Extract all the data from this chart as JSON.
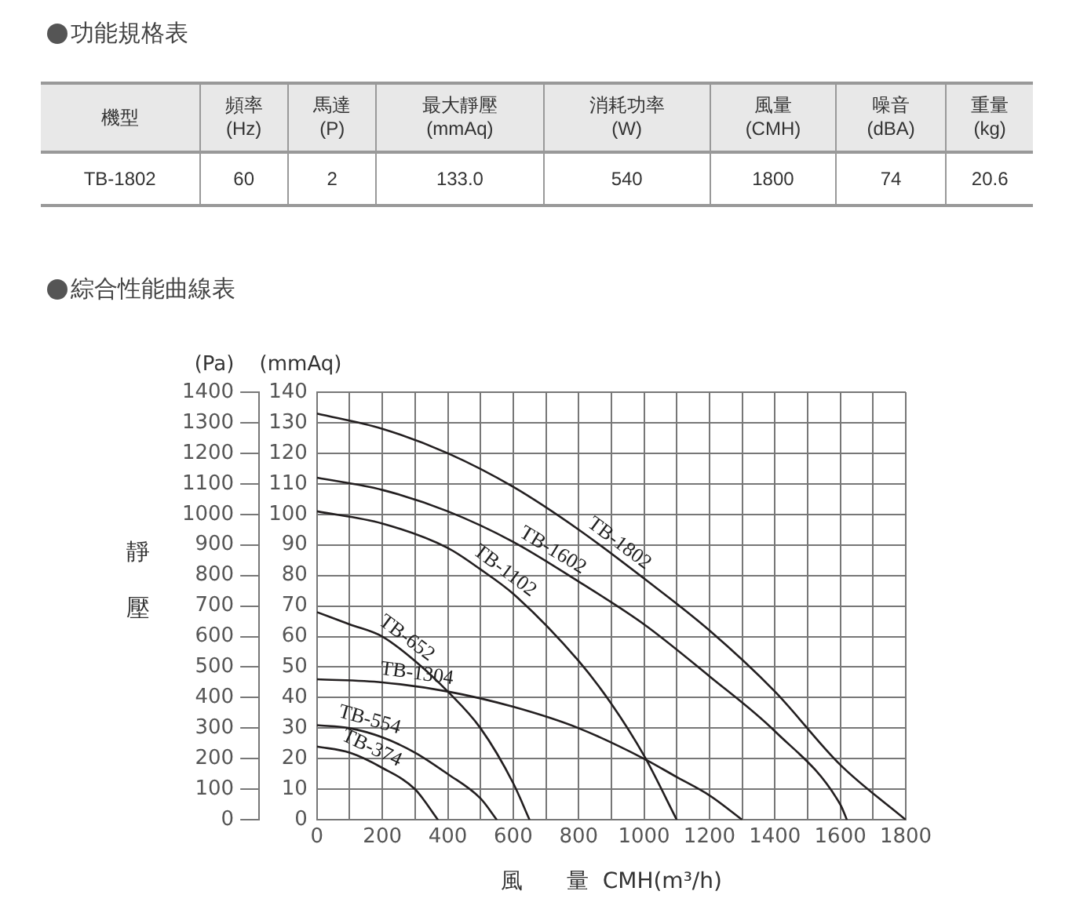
{
  "chart_data": [
    {
      "type": "other",
      "title": "功能規格表",
      "annotations": [
        "機型",
        "頻率\n(Hz)",
        "馬達\n(P)",
        "最大靜壓\n(mmAq)",
        "消耗功率\n(W)",
        "風量\n(CMH)",
        "噪音\n(dBA)",
        "重量\n(kg)",
        "TB-1802",
        "60",
        "2",
        "133.0",
        "540",
        "1800",
        "74",
        "20.6"
      ]
    },
    {
      "type": "line",
      "title": "綜合性能曲線表",
      "xlabel": "風　　量  CMH(m³/h)",
      "ylabel": "(mmAq)",
      "y2label": "(Pa)",
      "annotations": [
        "靜壓"
      ],
      "xlim": [
        0,
        1800
      ],
      "xticks": [
        0,
        {
          "value": 100,
          "label": null
        },
        200,
        {
          "value": 300,
          "label": null
        },
        400,
        {
          "value": 500,
          "label": null
        },
        600,
        {
          "value": 700,
          "label": null
        },
        800,
        {
          "value": 900,
          "label": null
        },
        1000,
        {
          "value": 1100,
          "label": null
        },
        1200,
        {
          "value": 1300,
          "label": null
        },
        1400,
        {
          "value": 1500,
          "label": null
        },
        1600,
        {
          "value": 1700,
          "label": null
        },
        1800
      ],
      "ylim": [
        0,
        140
      ],
      "yticks": [
        0,
        10,
        20,
        30,
        40,
        50,
        60,
        70,
        80,
        90,
        100,
        110,
        120,
        130,
        140
      ],
      "y2lim": [
        0,
        1400
      ],
      "y2ticks": [
        0,
        100,
        200,
        300,
        400,
        500,
        600,
        700,
        800,
        900,
        1000,
        1100,
        1200,
        1300,
        1400
      ],
      "grid": true,
      "legend": false,
      "marker": "none",
      "line_style": "solid",
      "series": [
        {
          "name": "TB-1802",
          "color": "#231f20",
          "x": [
            0,
            200,
            400,
            600,
            800,
            1000,
            1200,
            1400,
            1600,
            1800
          ],
          "values": [
            133,
            128,
            120,
            109,
            95,
            79,
            62,
            42,
            18,
            0
          ]
        },
        {
          "name": "TB-1602",
          "color": "#231f20",
          "x": [
            0,
            200,
            400,
            600,
            800,
            1000,
            1200,
            1400,
            1600,
            1620
          ],
          "values": [
            112,
            108,
            101,
            91,
            78,
            64,
            47,
            29,
            5,
            0
          ]
        },
        {
          "name": "TB-1102",
          "color": "#231f20",
          "x": [
            0,
            200,
            400,
            500,
            600,
            800,
            900,
            1000,
            1100
          ],
          "values": [
            101,
            97,
            89,
            82,
            74,
            52,
            38,
            21,
            0
          ]
        },
        {
          "name": "TB-1304",
          "color": "#231f20",
          "x": [
            0,
            200,
            400,
            600,
            800,
            1000,
            1100,
            1200,
            1300
          ],
          "values": [
            46,
            45,
            42,
            37,
            30,
            20,
            14,
            8,
            0
          ]
        },
        {
          "name": "TB-652",
          "color": "#231f20",
          "x": [
            0,
            100,
            200,
            300,
            400,
            500,
            600,
            650
          ],
          "values": [
            68,
            64,
            60,
            52,
            42,
            30,
            12,
            0
          ]
        },
        {
          "name": "TB-554",
          "color": "#231f20",
          "x": [
            0,
            100,
            200,
            300,
            400,
            500,
            550
          ],
          "values": [
            31,
            30,
            27,
            22,
            15,
            7,
            0
          ]
        },
        {
          "name": "TB-374",
          "color": "#231f20",
          "x": [
            0,
            100,
            200,
            300,
            370
          ],
          "values": [
            24,
            22,
            17,
            10,
            0
          ]
        }
      ]
    }
  ]
}
